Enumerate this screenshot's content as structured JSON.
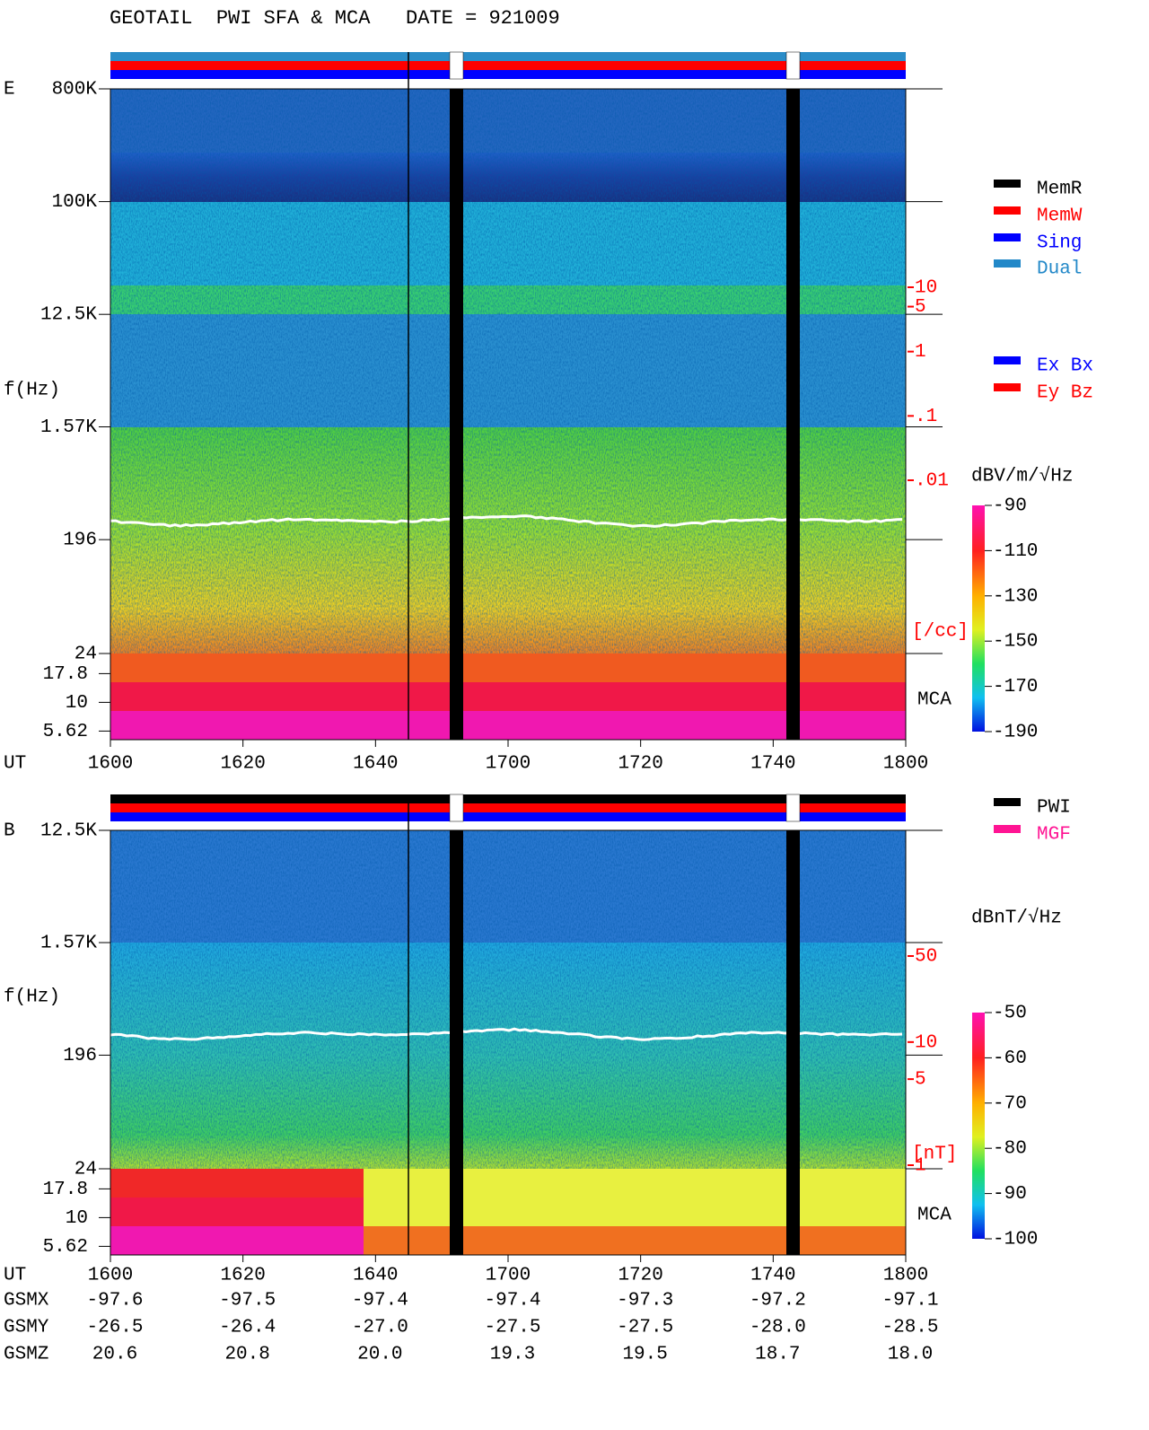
{
  "title": "GEOTAIL  PWI SFA & MCA   DATE = 921009",
  "x_axis": {
    "label": "UT",
    "ticks": [
      "1600",
      "1620",
      "1640",
      "1700",
      "1720",
      "1740",
      "1800"
    ]
  },
  "panels": [
    {
      "name": "E",
      "y_label": "f(Hz)",
      "log_scale": true,
      "ylim": [
        24,
        800000
      ],
      "yticks": [
        {
          "value": 800000,
          "label": "800K"
        },
        {
          "value": 100000,
          "label": "100K"
        },
        {
          "value": 12500,
          "label": "12.5K"
        },
        {
          "value": 1570,
          "label": "1.57K"
        },
        196,
        24
      ],
      "mca_label": "MCA",
      "mca_ticks": [
        17.8,
        10,
        5.62
      ],
      "right_lim": [
        10,
        0.01
      ],
      "right_ticks": [
        10,
        5,
        1,
        {
          "value": 0.1,
          "label": ".1"
        },
        {
          "value": 0.01,
          "label": ".01"
        }
      ],
      "right_unit": "[/cc]",
      "colorbar": {
        "label": "dBV/m/√Hz",
        "lim": [
          -90,
          -190
        ],
        "ticks": [
          -90,
          -110,
          -130,
          -150,
          -170,
          -190
        ]
      },
      "legend": [
        {
          "name": "MemR",
          "color": "#000000"
        },
        {
          "name": "MemW",
          "color": "#ff0000"
        },
        {
          "name": "Sing",
          "color": "#0000ff"
        },
        {
          "name": "Dual",
          "color": "#2288c8"
        }
      ],
      "components": [
        {
          "name": "Ex Bx",
          "color": "#0000ff"
        },
        {
          "name": "Ey Bz",
          "color": "#ff0000"
        }
      ]
    },
    {
      "name": "B",
      "y_label": "f(Hz)",
      "log_scale": true,
      "ylim": [
        24,
        12500
      ],
      "yticks": [
        {
          "value": 12500,
          "label": "12.5K"
        },
        {
          "value": 1570,
          "label": "1.57K"
        },
        196,
        24
      ],
      "mca_label": "MCA",
      "mca_ticks": [
        17.8,
        10,
        5.62
      ],
      "right_lim": [
        50,
        1
      ],
      "right_ticks": [
        50,
        10,
        5,
        1
      ],
      "right_unit": "[nT]",
      "colorbar": {
        "label": "dBnT/√Hz",
        "lim": [
          -50,
          -100
        ],
        "ticks": [
          -50,
          -60,
          -70,
          -80,
          -90,
          -100
        ]
      },
      "legend": [
        {
          "name": "PWI",
          "color": "#000000"
        },
        {
          "name": "MGF",
          "color": "#ff1493"
        }
      ]
    }
  ],
  "orbit": [
    {
      "name": "GSMX",
      "values": [
        "-97.6",
        "-97.5",
        "-97.4",
        "-97.4",
        "-97.3",
        "-97.2",
        "-97.1"
      ]
    },
    {
      "name": "GSMY",
      "values": [
        "-26.5",
        "-26.4",
        "-27.0",
        "-27.5",
        "-27.5",
        "-28.0",
        "-28.5"
      ]
    },
    {
      "name": "GSMZ",
      "values": [
        "20.6",
        "20.8",
        "20.0",
        "19.3",
        "19.5",
        "18.7",
        "18.0"
      ]
    }
  ]
}
